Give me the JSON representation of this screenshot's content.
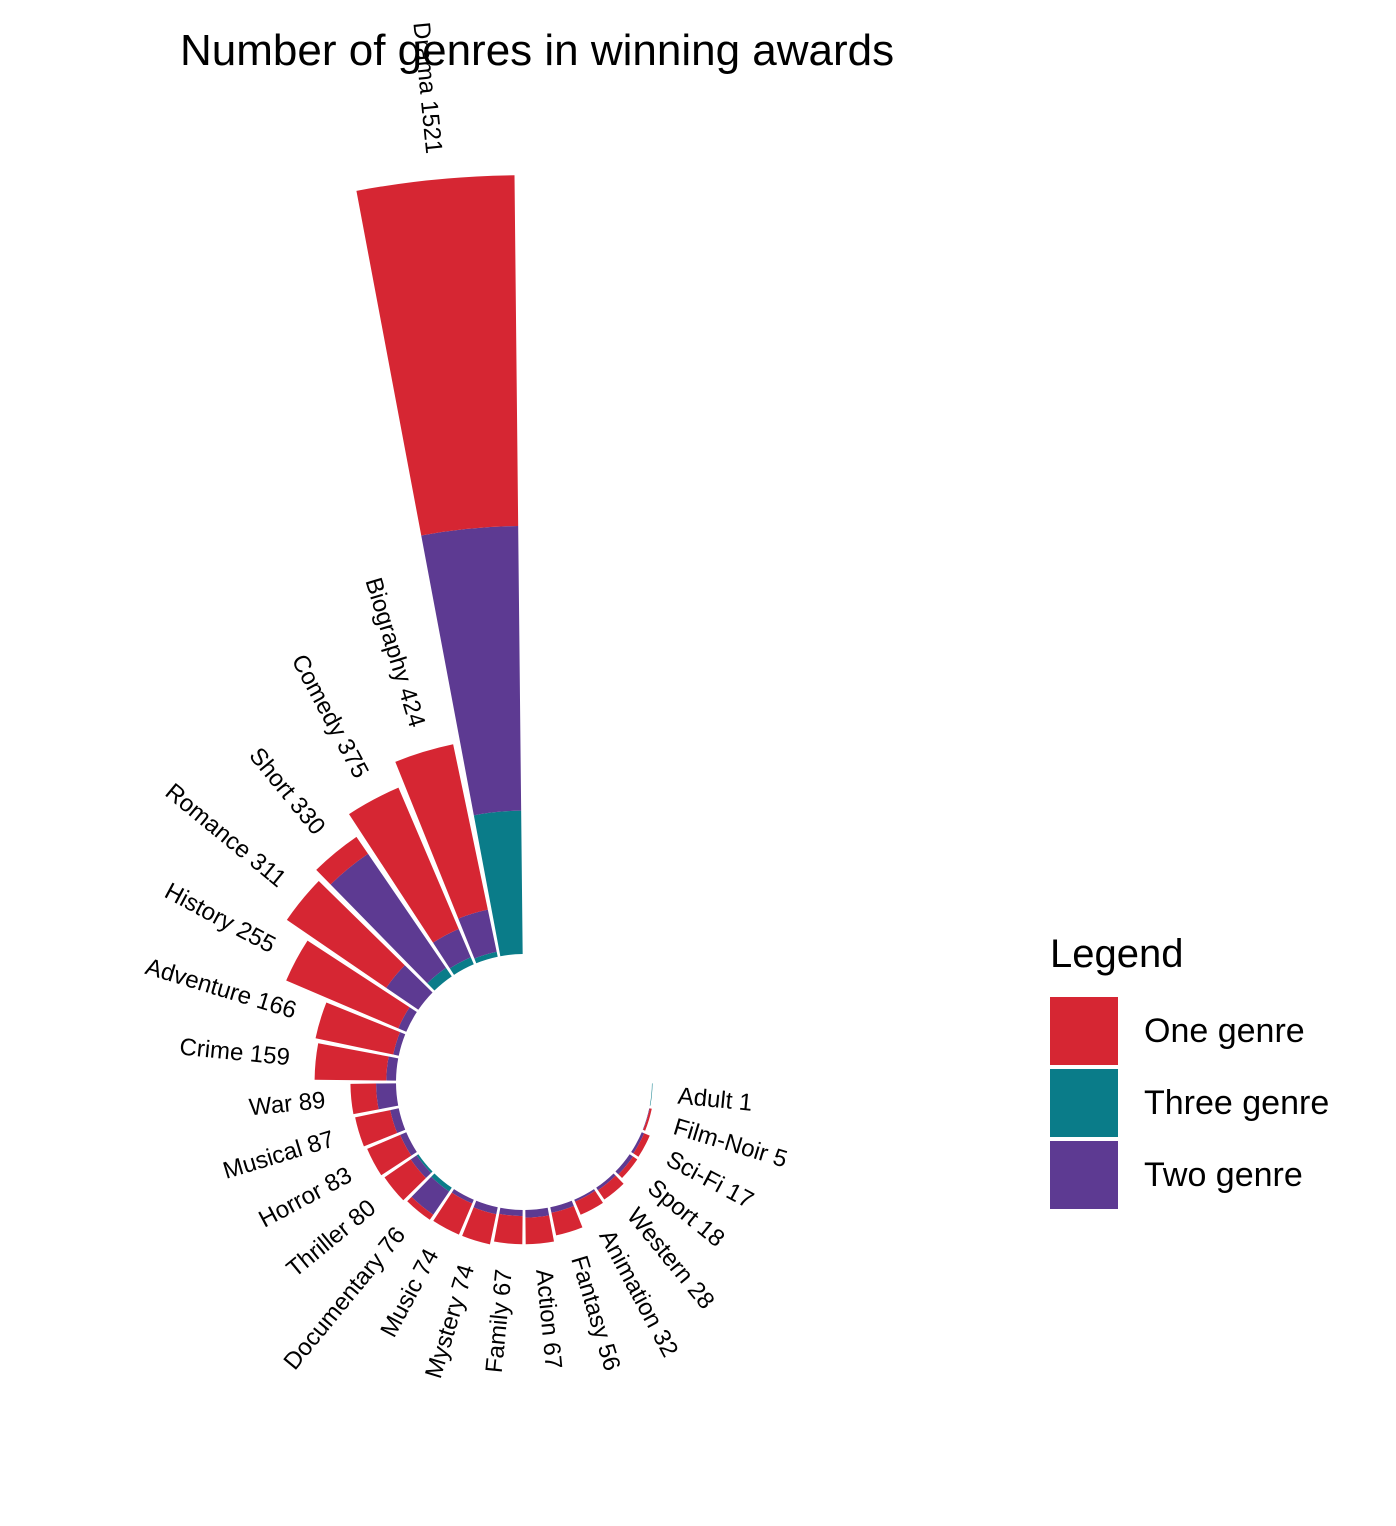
{
  "chart_data": {
    "type": "stacked-circular-bar",
    "title": "Number of genres in winning awards",
    "legend_title": "Legend",
    "legend_position": "right",
    "series": [
      {
        "name": "One genre",
        "color": "#D62633"
      },
      {
        "name": "Three genre",
        "color": "#0A7C89"
      },
      {
        "name": "Two genre",
        "color": "#5D3A92"
      }
    ],
    "bars": [
      {
        "genre": "Adult",
        "total": 1,
        "one": 0,
        "two": 0,
        "three": 1
      },
      {
        "genre": "Film-Noir",
        "total": 5,
        "one": 4,
        "two": 1,
        "three": 0
      },
      {
        "genre": "Sci-Fi",
        "total": 17,
        "one": 12,
        "two": 5,
        "three": 0
      },
      {
        "genre": "Sport",
        "total": 18,
        "one": 10,
        "two": 8,
        "three": 0
      },
      {
        "genre": "Western",
        "total": 28,
        "one": 22,
        "two": 6,
        "three": 0
      },
      {
        "genre": "Animation",
        "total": 32,
        "one": 28,
        "two": 4,
        "three": 0
      },
      {
        "genre": "Fantasy",
        "total": 56,
        "one": 45,
        "two": 11,
        "three": 0
      },
      {
        "genre": "Action",
        "total": 67,
        "one": 52,
        "two": 15,
        "three": 0
      },
      {
        "genre": "Family",
        "total": 67,
        "one": 55,
        "two": 12,
        "three": 0
      },
      {
        "genre": "Mystery",
        "total": 74,
        "one": 60,
        "two": 14,
        "three": 0
      },
      {
        "genre": "Music",
        "total": 74,
        "one": 66,
        "two": 8,
        "three": 0
      },
      {
        "genre": "Documentary",
        "total": 76,
        "one": 12,
        "two": 55,
        "three": 9
      },
      {
        "genre": "Thriller",
        "total": 80,
        "one": 62,
        "two": 14,
        "three": 4
      },
      {
        "genre": "Horror",
        "total": 83,
        "one": 70,
        "two": 13,
        "three": 0
      },
      {
        "genre": "Musical",
        "total": 87,
        "one": 70,
        "two": 17,
        "three": 0
      },
      {
        "genre": "War",
        "total": 89,
        "one": 50,
        "two": 39,
        "three": 0
      },
      {
        "genre": "Crime",
        "total": 159,
        "one": 140,
        "two": 19,
        "three": 0
      },
      {
        "genre": "Adventure",
        "total": 166,
        "one": 155,
        "two": 11,
        "three": 0
      },
      {
        "genre": "History",
        "total": 255,
        "one": 238,
        "two": 17,
        "three": 0
      },
      {
        "genre": "Romance",
        "total": 311,
        "one": 235,
        "two": 76,
        "three": 0
      },
      {
        "genre": "Short",
        "total": 330,
        "one": 40,
        "two": 270,
        "three": 20
      },
      {
        "genre": "Comedy",
        "total": 375,
        "one": 300,
        "two": 60,
        "three": 15
      },
      {
        "genre": "Biography",
        "total": 424,
        "one": 330,
        "two": 84,
        "three": 10
      },
      {
        "genre": "Drama",
        "total": 1521,
        "one": 685,
        "two": 556,
        "three": 280
      }
    ]
  }
}
